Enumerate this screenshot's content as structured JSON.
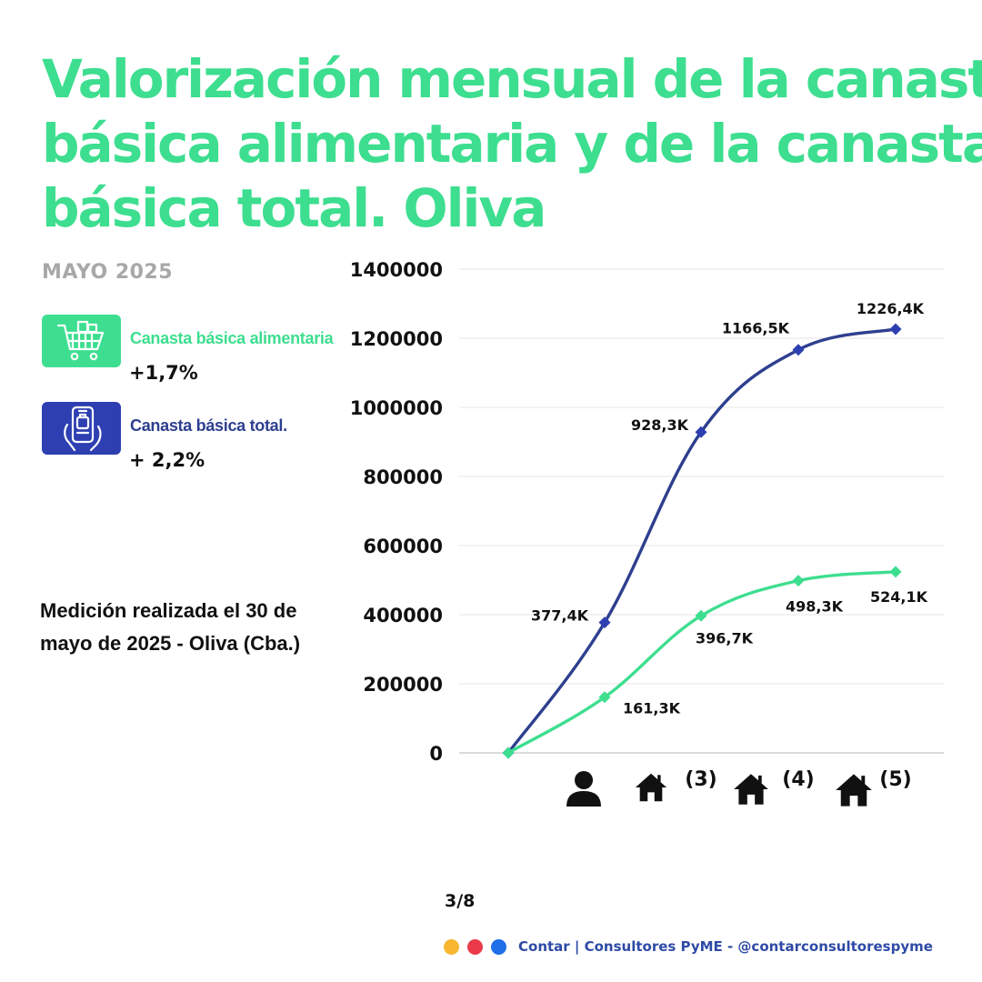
{
  "header": {
    "title_lines": [
      "Valorización mensual de la canasta",
      "básica alimentaria y de la canasta",
      "básica total.  Oliva"
    ],
    "month": "MAYO 2025"
  },
  "legend": {
    "items": [
      {
        "icon": "shopping-cart-icon",
        "label": "Canasta básica alimentaria",
        "change": "+1,7%",
        "color": "#3dde8f"
      },
      {
        "icon": "mobile-shopping-icon",
        "label": "Canasta básica total.",
        "change": "+ 2,2%",
        "color": "#2e3f8f"
      }
    ]
  },
  "note": "Medición realizada el 30 de mayo de 2025 - Oliva (Cba.)",
  "chart_data": {
    "type": "line",
    "categories": [
      "",
      "person-icon",
      "house-icon",
      "house-icon (4)",
      "house-icon (5)"
    ],
    "category_labels": [
      "",
      "",
      "(3)",
      "(4)",
      "(5)"
    ],
    "category_icons": [
      "",
      "person-icon",
      "house-icon",
      "house-icon",
      "house-icon"
    ],
    "x": [
      0,
      1,
      2,
      3,
      4
    ],
    "ylim": [
      0,
      1400000
    ],
    "yticks": [
      0,
      200000,
      400000,
      600000,
      800000,
      1000000,
      1200000,
      1400000
    ],
    "ytick_labels": [
      "0",
      "200000",
      "400000",
      "600000",
      "800000",
      "1000000",
      "1200000",
      "1400000"
    ],
    "grid": true,
    "series": [
      {
        "name": "Canasta básica total.",
        "color": "#2e3f8f",
        "values": [
          0,
          377400,
          928300,
          1166500,
          1226400
        ],
        "labels": [
          "",
          "377,4K",
          "928,3K",
          "1166,5K",
          "1226,4K"
        ]
      },
      {
        "name": "Canasta básica alimentaria",
        "color": "#3dde8f",
        "values": [
          0,
          161300,
          396700,
          498300,
          524100
        ],
        "labels": [
          "",
          "161,3K",
          "396,7K",
          "498,3K",
          "524,1K"
        ]
      }
    ]
  },
  "page": "3/8",
  "footer": {
    "dots": [
      "#f7b731",
      "#eb3b4a",
      "#1e6fe8"
    ],
    "text": "Contar | Consultores PyME - @contarconsultorespyme"
  }
}
